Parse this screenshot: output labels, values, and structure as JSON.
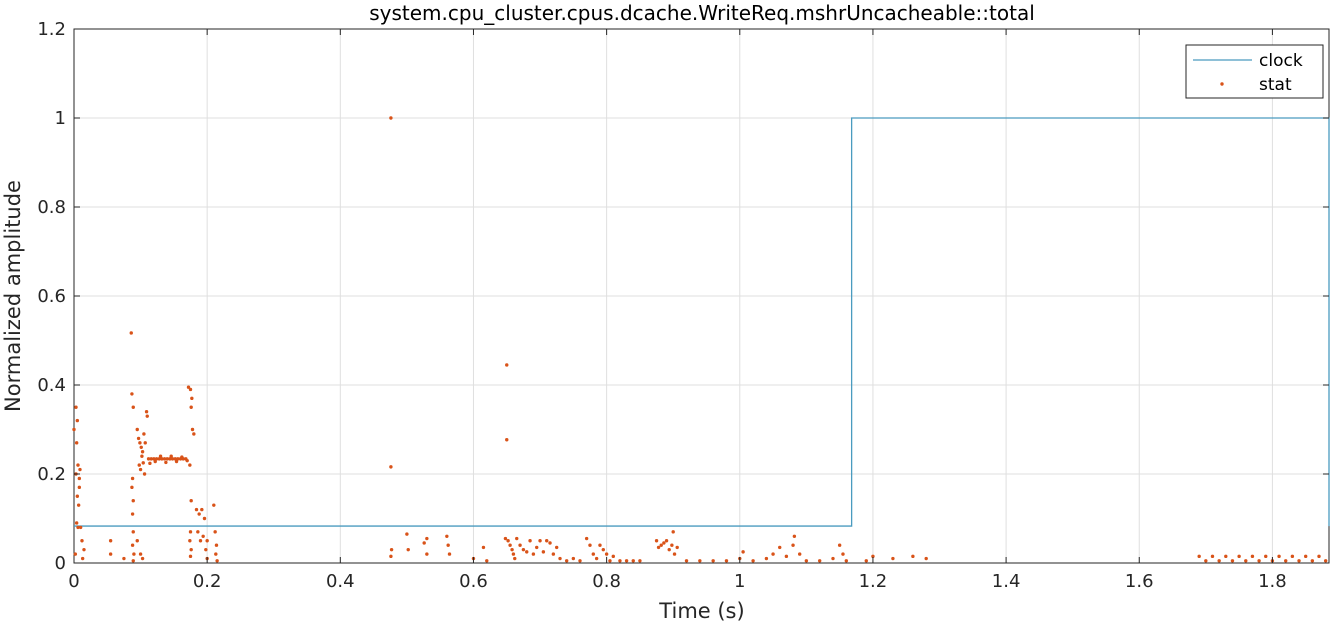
{
  "chart_data": {
    "type": "line",
    "title": "system.cpu_cluster.cpus.dcache.WriteReq.mshrUncacheable::total",
    "xlabel": "Time (s)",
    "ylabel": "Normalized amplitude",
    "xlim": [
      0,
      1.885
    ],
    "ylim": [
      0,
      1.2
    ],
    "xticks": [
      0,
      0.2,
      0.4,
      0.6,
      0.8,
      1,
      1.2,
      1.4,
      1.6,
      1.8
    ],
    "xtick_labels": [
      "0",
      "0.2",
      "0.4",
      "0.6",
      "0.8",
      "1",
      "1.2",
      "1.4",
      "1.6",
      "1.8"
    ],
    "yticks": [
      0,
      0.2,
      0.4,
      0.6,
      0.8,
      1,
      1.2
    ],
    "ytick_labels": [
      "0",
      "0.2",
      "0.4",
      "0.6",
      "0.8",
      "1",
      "1.2"
    ],
    "grid": true,
    "legend_position": "top-right",
    "series": [
      {
        "name": "clock",
        "kind": "line",
        "color": "#4a9bbf",
        "x": [
          0,
          1.168,
          1.168,
          1.885,
          1.885
        ],
        "y": [
          0.083,
          0.083,
          1.0,
          1.0,
          0.083
        ]
      },
      {
        "name": "stat",
        "kind": "scatter",
        "color": "#d95319",
        "points": [
          [
            0.0,
            0.3
          ],
          [
            0.003,
            0.35
          ],
          [
            0.005,
            0.32
          ],
          [
            0.004,
            0.27
          ],
          [
            0.006,
            0.22
          ],
          [
            0.003,
            0.2
          ],
          [
            0.005,
            0.15
          ],
          [
            0.004,
            0.09
          ],
          [
            0.006,
            0.08
          ],
          [
            0.008,
            0.19
          ],
          [
            0.009,
            0.21
          ],
          [
            0.008,
            0.17
          ],
          [
            0.007,
            0.13
          ],
          [
            0.01,
            0.08
          ],
          [
            0.012,
            0.05
          ],
          [
            0.002,
            0.02
          ],
          [
            0.013,
            0.01
          ],
          [
            0.015,
            0.03
          ],
          [
            0.055,
            0.05
          ],
          [
            0.055,
            0.02
          ],
          [
            0.075,
            0.01
          ],
          [
            0.086,
            0.517
          ],
          [
            0.087,
            0.38
          ],
          [
            0.089,
            0.35
          ],
          [
            0.088,
            0.19
          ],
          [
            0.087,
            0.17
          ],
          [
            0.089,
            0.14
          ],
          [
            0.088,
            0.11
          ],
          [
            0.089,
            0.07
          ],
          [
            0.088,
            0.04
          ],
          [
            0.09,
            0.02
          ],
          [
            0.089,
            0.005
          ],
          [
            0.095,
            0.3
          ],
          [
            0.097,
            0.28
          ],
          [
            0.099,
            0.27
          ],
          [
            0.101,
            0.26
          ],
          [
            0.103,
            0.25
          ],
          [
            0.105,
            0.29
          ],
          [
            0.107,
            0.27
          ],
          [
            0.109,
            0.34
          ],
          [
            0.11,
            0.33
          ],
          [
            0.098,
            0.22
          ],
          [
            0.1,
            0.21
          ],
          [
            0.102,
            0.24
          ],
          [
            0.104,
            0.225
          ],
          [
            0.106,
            0.2
          ],
          [
            0.095,
            0.05
          ],
          [
            0.1,
            0.02
          ],
          [
            0.103,
            0.01
          ],
          [
            0.112,
            0.234
          ],
          [
            0.116,
            0.234
          ],
          [
            0.12,
            0.234
          ],
          [
            0.124,
            0.234
          ],
          [
            0.128,
            0.234
          ],
          [
            0.132,
            0.234
          ],
          [
            0.136,
            0.234
          ],
          [
            0.14,
            0.234
          ],
          [
            0.144,
            0.234
          ],
          [
            0.148,
            0.234
          ],
          [
            0.152,
            0.234
          ],
          [
            0.156,
            0.234
          ],
          [
            0.16,
            0.234
          ],
          [
            0.164,
            0.234
          ],
          [
            0.168,
            0.234
          ],
          [
            0.114,
            0.224
          ],
          [
            0.122,
            0.228
          ],
          [
            0.13,
            0.24
          ],
          [
            0.138,
            0.226
          ],
          [
            0.146,
            0.24
          ],
          [
            0.154,
            0.228
          ],
          [
            0.162,
            0.238
          ],
          [
            0.17,
            0.23
          ],
          [
            0.172,
            0.395
          ],
          [
            0.175,
            0.39
          ],
          [
            0.177,
            0.37
          ],
          [
            0.176,
            0.35
          ],
          [
            0.174,
            0.22
          ],
          [
            0.176,
            0.14
          ],
          [
            0.175,
            0.07
          ],
          [
            0.174,
            0.05
          ],
          [
            0.176,
            0.03
          ],
          [
            0.175,
            0.015
          ],
          [
            0.178,
            0.3
          ],
          [
            0.18,
            0.29
          ],
          [
            0.184,
            0.12
          ],
          [
            0.188,
            0.11
          ],
          [
            0.192,
            0.12
          ],
          [
            0.196,
            0.1
          ],
          [
            0.186,
            0.07
          ],
          [
            0.19,
            0.05
          ],
          [
            0.194,
            0.06
          ],
          [
            0.2,
            0.05
          ],
          [
            0.198,
            0.03
          ],
          [
            0.2,
            0.01
          ],
          [
            0.21,
            0.13
          ],
          [
            0.212,
            0.07
          ],
          [
            0.214,
            0.04
          ],
          [
            0.213,
            0.02
          ],
          [
            0.215,
            0.005
          ],
          [
            0.476,
            1.0
          ],
          [
            0.476,
            0.216
          ],
          [
            0.477,
            0.03
          ],
          [
            0.476,
            0.015
          ],
          [
            0.5,
            0.065
          ],
          [
            0.502,
            0.03
          ],
          [
            0.526,
            0.045
          ],
          [
            0.53,
            0.02
          ],
          [
            0.53,
            0.055
          ],
          [
            0.56,
            0.06
          ],
          [
            0.562,
            0.04
          ],
          [
            0.564,
            0.02
          ],
          [
            0.6,
            0.01
          ],
          [
            0.615,
            0.035
          ],
          [
            0.62,
            0.005
          ],
          [
            0.65,
            0.445
          ],
          [
            0.65,
            0.277
          ],
          [
            0.648,
            0.055
          ],
          [
            0.652,
            0.05
          ],
          [
            0.655,
            0.04
          ],
          [
            0.658,
            0.03
          ],
          [
            0.66,
            0.02
          ],
          [
            0.662,
            0.01
          ],
          [
            0.665,
            0.055
          ],
          [
            0.67,
            0.04
          ],
          [
            0.675,
            0.03
          ],
          [
            0.68,
            0.025
          ],
          [
            0.685,
            0.05
          ],
          [
            0.69,
            0.02
          ],
          [
            0.695,
            0.035
          ],
          [
            0.7,
            0.05
          ],
          [
            0.705,
            0.025
          ],
          [
            0.71,
            0.05
          ],
          [
            0.715,
            0.045
          ],
          [
            0.72,
            0.02
          ],
          [
            0.725,
            0.035
          ],
          [
            0.73,
            0.01
          ],
          [
            0.74,
            0.005
          ],
          [
            0.75,
            0.01
          ],
          [
            0.76,
            0.005
          ],
          [
            0.77,
            0.055
          ],
          [
            0.775,
            0.04
          ],
          [
            0.78,
            0.02
          ],
          [
            0.785,
            0.01
          ],
          [
            0.79,
            0.04
          ],
          [
            0.795,
            0.03
          ],
          [
            0.8,
            0.02
          ],
          [
            0.805,
            0.005
          ],
          [
            0.81,
            0.015
          ],
          [
            0.82,
            0.005
          ],
          [
            0.83,
            0.005
          ],
          [
            0.84,
            0.005
          ],
          [
            0.85,
            0.005
          ],
          [
            0.875,
            0.05
          ],
          [
            0.878,
            0.035
          ],
          [
            0.882,
            0.04
          ],
          [
            0.886,
            0.045
          ],
          [
            0.89,
            0.05
          ],
          [
            0.894,
            0.03
          ],
          [
            0.898,
            0.04
          ],
          [
            0.9,
            0.07
          ],
          [
            0.902,
            0.02
          ],
          [
            0.906,
            0.035
          ],
          [
            0.92,
            0.005
          ],
          [
            0.94,
            0.005
          ],
          [
            0.96,
            0.005
          ],
          [
            0.98,
            0.005
          ],
          [
            1.0,
            0.01
          ],
          [
            1.02,
            0.005
          ],
          [
            1.04,
            0.01
          ],
          [
            1.005,
            0.025
          ],
          [
            1.05,
            0.02
          ],
          [
            1.06,
            0.035
          ],
          [
            1.07,
            0.015
          ],
          [
            1.08,
            0.04
          ],
          [
            1.082,
            0.06
          ],
          [
            1.09,
            0.02
          ],
          [
            1.1,
            0.005
          ],
          [
            1.12,
            0.005
          ],
          [
            1.14,
            0.01
          ],
          [
            1.16,
            0.005
          ],
          [
            1.15,
            0.04
          ],
          [
            1.155,
            0.02
          ],
          [
            1.19,
            0.005
          ],
          [
            1.2,
            0.015
          ],
          [
            1.23,
            0.01
          ],
          [
            1.26,
            0.015
          ],
          [
            1.28,
            0.01
          ],
          [
            1.69,
            0.015
          ],
          [
            1.7,
            0.005
          ],
          [
            1.71,
            0.015
          ],
          [
            1.72,
            0.005
          ],
          [
            1.73,
            0.015
          ],
          [
            1.74,
            0.005
          ],
          [
            1.75,
            0.015
          ],
          [
            1.76,
            0.005
          ],
          [
            1.77,
            0.015
          ],
          [
            1.78,
            0.005
          ],
          [
            1.79,
            0.015
          ],
          [
            1.8,
            0.005
          ],
          [
            1.81,
            0.015
          ],
          [
            1.82,
            0.005
          ],
          [
            1.83,
            0.015
          ],
          [
            1.84,
            0.005
          ],
          [
            1.85,
            0.015
          ],
          [
            1.86,
            0.005
          ],
          [
            1.87,
            0.015
          ],
          [
            1.88,
            0.005
          ]
        ]
      }
    ]
  }
}
